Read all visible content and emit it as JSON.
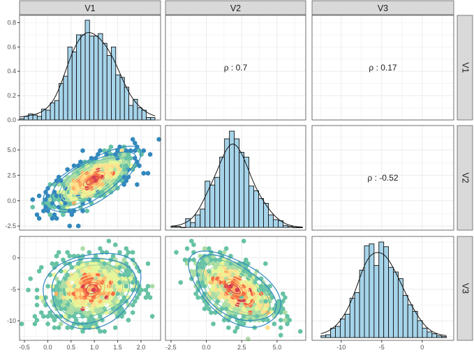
{
  "chart_data": {
    "type": "pairs",
    "variables": [
      "V1",
      "V2",
      "V3"
    ],
    "axis_limits": {
      "V1": [
        -0.605,
        2.42
      ],
      "V2": [
        -2.89,
        7.03
      ],
      "V2_rows": [
        -2.9,
        7.4
      ],
      "V3": [
        -13.6,
        3.9
      ],
      "V3_rows": [
        -13.1,
        3.4
      ],
      "density_V1": [
        0,
        0.86
      ]
    },
    "x_ticks": {
      "V1": [
        "-0.5",
        "0.0",
        "0.5",
        "1.0",
        "1.5",
        "2.0"
      ],
      "V2": [
        "-2.5",
        "0.0",
        "2.5",
        "5.0"
      ],
      "V3": [
        "-10",
        "-5",
        "0"
      ]
    },
    "y_ticks": {
      "row1": [
        "0.0",
        "0.2",
        "0.4",
        "0.6",
        "0.8"
      ],
      "row2": [
        "-2.5",
        "0.0",
        "2.5",
        "5.0"
      ],
      "row3": [
        "-10",
        "-5",
        "0"
      ]
    },
    "moments": {
      "V1": {
        "mean": 0.95,
        "sd": 0.45
      },
      "V2": {
        "mean": 2.0,
        "sd": 1.4
      },
      "V3": {
        "mean": -5.0,
        "sd": 2.6
      }
    },
    "correlations": [
      {
        "pair": [
          "V1",
          "V2"
        ],
        "label": "ρ : 0.7",
        "rho": 0.7
      },
      {
        "pair": [
          "V1",
          "V3"
        ],
        "label": "ρ : 0.17",
        "rho": 0.17
      },
      {
        "pair": [
          "V2",
          "V3"
        ],
        "label": "ρ : -0.52",
        "rho": -0.52
      }
    ],
    "histograms": {
      "V1": {
        "range": [
          -0.6,
          2.3
        ],
        "unit": "density",
        "values": [
          0.01,
          0.03,
          0.05,
          0.04,
          0.03,
          0.09,
          0.08,
          0.14,
          0.16,
          0.3,
          0.36,
          0.6,
          0.56,
          0.7,
          0.7,
          0.82,
          0.69,
          0.69,
          0.71,
          0.63,
          0.53,
          0.6,
          0.37,
          0.35,
          0.27,
          0.12,
          0.17,
          0.1,
          0.08,
          0.02,
          0.02
        ]
      },
      "V2": {
        "range": [
          -2.5,
          6.8
        ],
        "unit": "relative",
        "values": [
          0.01,
          0.01,
          0.0,
          0.09,
          0.05,
          0.13,
          0.19,
          0.48,
          0.44,
          0.52,
          0.73,
          0.92,
          1.0,
          0.92,
          0.78,
          0.73,
          0.43,
          0.38,
          0.3,
          0.25,
          0.13,
          0.08,
          0.07,
          0.02,
          0.01,
          0.0,
          0.0
        ]
      },
      "V3": {
        "range": [
          -12.5,
          3.0
        ],
        "unit": "relative",
        "values": [
          0.02,
          0.03,
          0.1,
          0.12,
          0.2,
          0.25,
          0.42,
          0.48,
          0.72,
          0.98,
          1.0,
          0.77,
          1.02,
          0.97,
          0.75,
          0.7,
          0.63,
          0.45,
          0.35,
          0.28,
          0.18,
          0.1,
          0.06,
          0.04,
          0.02,
          0.01
        ]
      }
    },
    "colors": {
      "bar_fill": "#a6d4ea",
      "strip_fill": "#d9d9d9",
      "grid": "#ebebeb",
      "palette": [
        "#3288bd",
        "#66c2a5",
        "#abdda4",
        "#e6f598",
        "#fee08b",
        "#fdae61",
        "#f46d43",
        "#d53e4f"
      ]
    }
  }
}
